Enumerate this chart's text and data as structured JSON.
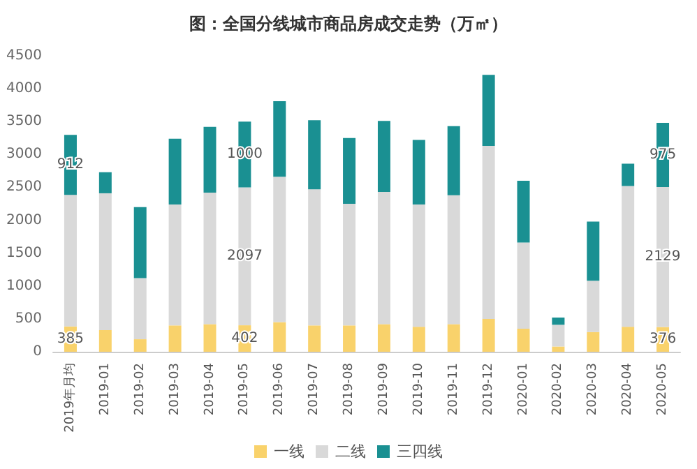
{
  "chart_data": {
    "type": "bar",
    "title": "图：全国分线城市商品房成交走势（万㎡）",
    "stacked": true,
    "legend": "bottom",
    "grid": false,
    "categories": [
      "2019年月均",
      "2019-01",
      "2019-02",
      "2019-03",
      "2019-04",
      "2019-05",
      "2019-06",
      "2019-07",
      "2019-08",
      "2019-09",
      "2019-10",
      "2019-11",
      "2019-12",
      "2020-01",
      "2020-02",
      "2020-03",
      "2020-04",
      "2020-05"
    ],
    "ylim": [
      0,
      4500
    ],
    "yticks": [
      0,
      500,
      1000,
      1500,
      2000,
      2500,
      3000,
      3500,
      4000,
      4500
    ],
    "series": [
      {
        "name": "一线",
        "color": "#f9d26b",
        "values": [
          385,
          330,
          190,
          400,
          420,
          402,
          450,
          400,
          400,
          420,
          380,
          420,
          500,
          350,
          80,
          300,
          380,
          376
        ],
        "value_labels": [
          "385",
          null,
          null,
          null,
          null,
          "402",
          null,
          null,
          null,
          null,
          null,
          null,
          null,
          null,
          null,
          null,
          null,
          "376"
        ]
      },
      {
        "name": "二线",
        "color": "#d9d9d9",
        "values": [
          2000,
          2080,
          930,
          1840,
          2000,
          2097,
          2210,
          2070,
          1850,
          2010,
          1860,
          1960,
          2630,
          1310,
          330,
          780,
          2140,
          2129
        ],
        "value_labels": [
          null,
          null,
          null,
          null,
          null,
          "2097",
          null,
          null,
          null,
          null,
          null,
          null,
          null,
          null,
          null,
          null,
          null,
          "2129"
        ]
      },
      {
        "name": "三四线",
        "color": "#1a9092",
        "values": [
          912,
          320,
          1080,
          1000,
          1000,
          1000,
          1150,
          1050,
          1000,
          1080,
          980,
          1050,
          1080,
          940,
          110,
          900,
          340,
          975
        ],
        "value_labels": [
          "912",
          null,
          null,
          null,
          null,
          "1000",
          null,
          null,
          null,
          null,
          null,
          null,
          null,
          null,
          null,
          null,
          null,
          "975"
        ]
      }
    ]
  }
}
